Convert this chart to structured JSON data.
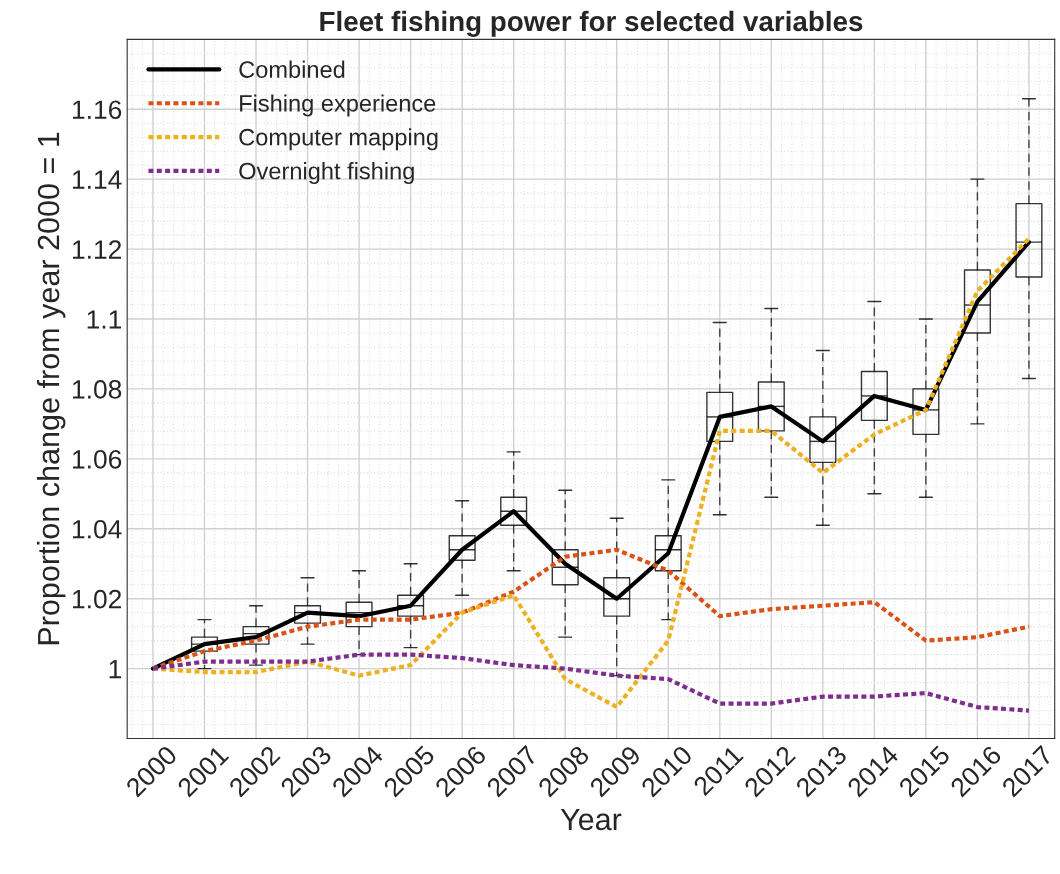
{
  "chart_data": {
    "type": "line",
    "title": "Fleet fishing power for selected variables",
    "xlabel": "Year",
    "ylabel": "Proportion change from year 2000 = 1",
    "categories": [
      "2000",
      "2001",
      "2002",
      "2003",
      "2004",
      "2005",
      "2006",
      "2007",
      "2008",
      "2009",
      "2010",
      "2011",
      "2012",
      "2013",
      "2014",
      "2015",
      "2016",
      "2017"
    ],
    "ylim": [
      0.98,
      1.18
    ],
    "yticks": [
      1,
      1.02,
      1.04,
      1.06,
      1.08,
      1.1,
      1.12,
      1.14,
      1.16
    ],
    "grid": true,
    "legend": "top left",
    "series": [
      {
        "type": "box",
        "color": "#000000",
        "boxes": [
          null,
          {
            "low": 1.0,
            "q1": 1.005,
            "median": 1.007,
            "q3": 1.009,
            "high": 1.014
          },
          {
            "low": 1.001,
            "q1": 1.007,
            "median": 1.01,
            "q3": 1.012,
            "high": 1.018
          },
          {
            "low": 1.007,
            "q1": 1.013,
            "median": 1.016,
            "q3": 1.018,
            "high": 1.026
          },
          {
            "low": 1.004,
            "q1": 1.012,
            "median": 1.016,
            "q3": 1.019,
            "high": 1.028
          },
          {
            "low": 1.006,
            "q1": 1.015,
            "median": 1.018,
            "q3": 1.021,
            "high": 1.03
          },
          {
            "low": 1.021,
            "q1": 1.031,
            "median": 1.034,
            "q3": 1.038,
            "high": 1.048
          },
          {
            "low": 1.028,
            "q1": 1.041,
            "median": 1.045,
            "q3": 1.049,
            "high": 1.062
          },
          {
            "low": 1.009,
            "q1": 1.024,
            "median": 1.029,
            "q3": 1.034,
            "high": 1.051
          },
          {
            "low": 0.998,
            "q1": 1.015,
            "median": 1.02,
            "q3": 1.026,
            "high": 1.043
          },
          {
            "low": 1.014,
            "q1": 1.028,
            "median": 1.034,
            "q3": 1.038,
            "high": 1.054
          },
          {
            "low": 1.044,
            "q1": 1.065,
            "median": 1.072,
            "q3": 1.079,
            "high": 1.099
          },
          {
            "low": 1.049,
            "q1": 1.068,
            "median": 1.075,
            "q3": 1.082,
            "high": 1.103
          },
          {
            "low": 1.041,
            "q1": 1.059,
            "median": 1.065,
            "q3": 1.072,
            "high": 1.091
          },
          {
            "low": 1.05,
            "q1": 1.071,
            "median": 1.078,
            "q3": 1.085,
            "high": 1.105
          },
          {
            "low": 1.049,
            "q1": 1.067,
            "median": 1.074,
            "q3": 1.08,
            "high": 1.1
          },
          {
            "low": 1.07,
            "q1": 1.096,
            "median": 1.104,
            "q3": 1.114,
            "high": 1.14
          },
          {
            "low": 1.083,
            "q1": 1.112,
            "median": 1.122,
            "q3": 1.133,
            "high": 1.163
          }
        ]
      },
      {
        "name": "Combined",
        "color": "#000000",
        "line_style": "solid",
        "values": [
          1.0,
          1.007,
          1.009,
          1.016,
          1.015,
          1.018,
          1.034,
          1.045,
          1.03,
          1.02,
          1.033,
          1.072,
          1.075,
          1.065,
          1.078,
          1.074,
          1.105,
          1.122
        ]
      },
      {
        "name": "Fishing experience",
        "color": "#d95319",
        "line_style": "dotted",
        "values": [
          1.0,
          1.005,
          1.008,
          1.012,
          1.014,
          1.014,
          1.016,
          1.022,
          1.032,
          1.034,
          1.028,
          1.015,
          1.017,
          1.018,
          1.019,
          1.008,
          1.009,
          1.012
        ]
      },
      {
        "name": "Computer mapping",
        "color": "#edb120",
        "line_style": "dotted",
        "values": [
          1.0,
          0.999,
          0.999,
          1.002,
          0.998,
          1.001,
          1.016,
          1.021,
          0.997,
          0.989,
          1.008,
          1.068,
          1.068,
          1.056,
          1.067,
          1.074,
          1.108,
          1.123
        ]
      },
      {
        "name": "Overnight fishing",
        "color": "#7e2f8e",
        "line_style": "dotted",
        "values": [
          1.0,
          1.002,
          1.002,
          1.002,
          1.004,
          1.004,
          1.003,
          1.001,
          1.0,
          0.998,
          0.997,
          0.99,
          0.99,
          0.992,
          0.992,
          0.993,
          0.989,
          0.988
        ]
      }
    ]
  }
}
